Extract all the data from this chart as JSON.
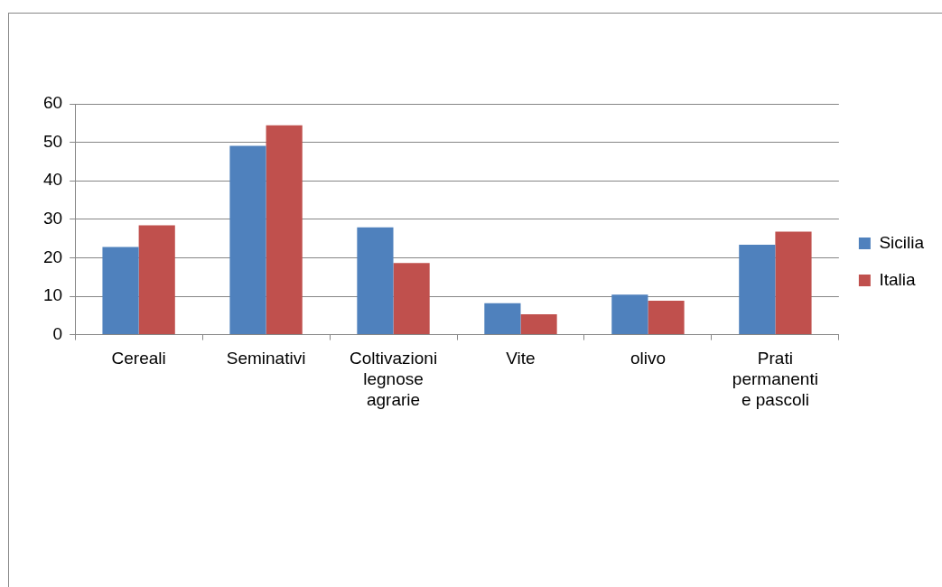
{
  "chart_data": {
    "type": "bar",
    "categories": [
      "Cereali",
      "Seminativi",
      "Coltivazioni legnose agrarie",
      "Vite",
      "olivo",
      "Prati permanenti e pascoli"
    ],
    "series": [
      {
        "name": "Sicilia",
        "color": "#4f81bd",
        "values": [
          22.8,
          49.1,
          27.9,
          8.2,
          10.4,
          23.4
        ]
      },
      {
        "name": "Italia",
        "color": "#c0504d",
        "values": [
          28.4,
          54.4,
          18.6,
          5.3,
          8.8,
          26.8
        ]
      }
    ],
    "ylim": [
      0,
      60
    ],
    "yticks": [
      0,
      10,
      20,
      30,
      40,
      50,
      60
    ],
    "grid": "y",
    "legend": "right"
  }
}
